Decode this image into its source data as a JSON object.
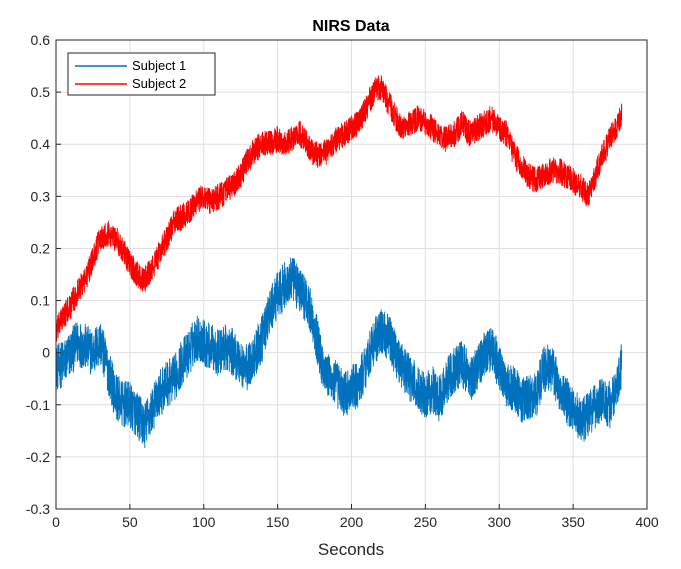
{
  "chart_data": {
    "type": "line",
    "title": "NIRS Data",
    "xlabel": "Seconds",
    "ylabel": "",
    "xlim": [
      0,
      400
    ],
    "ylim": [
      -0.3,
      0.6
    ],
    "xticks": [
      "0",
      "50",
      "100",
      "150",
      "200",
      "250",
      "300",
      "350",
      "400"
    ],
    "yticks": [
      "-0.3",
      "-0.2",
      "-0.1",
      "0",
      "0.1",
      "0.2",
      "0.3",
      "0.4",
      "0.5",
      "0.6"
    ],
    "grid": true,
    "legend_position": "top-left",
    "series": [
      {
        "name": "Subject 1",
        "color": "#0072BD",
        "noise_amplitude": 0.045,
        "x": [
          0,
          5,
          10,
          15,
          20,
          25,
          30,
          35,
          40,
          45,
          50,
          55,
          60,
          65,
          70,
          75,
          80,
          85,
          90,
          95,
          100,
          105,
          110,
          115,
          120,
          125,
          130,
          135,
          140,
          145,
          150,
          155,
          160,
          165,
          170,
          175,
          180,
          185,
          190,
          195,
          200,
          205,
          210,
          215,
          220,
          225,
          230,
          235,
          240,
          245,
          250,
          255,
          260,
          265,
          270,
          275,
          280,
          285,
          290,
          295,
          300,
          305,
          310,
          315,
          320,
          325,
          330,
          335,
          340,
          345,
          350,
          355,
          360,
          365,
          370,
          375,
          380,
          383
        ],
        "y": [
          -0.03,
          -0.02,
          0.0,
          0.02,
          0.01,
          0.0,
          0.02,
          -0.03,
          -0.08,
          -0.1,
          -0.1,
          -0.12,
          -0.14,
          -0.11,
          -0.08,
          -0.06,
          -0.05,
          -0.02,
          0.0,
          0.03,
          0.02,
          0.01,
          0.0,
          0.01,
          0.0,
          -0.02,
          -0.03,
          0.0,
          0.03,
          0.08,
          0.11,
          0.13,
          0.14,
          0.12,
          0.1,
          0.05,
          -0.02,
          -0.05,
          -0.06,
          -0.08,
          -0.07,
          -0.06,
          -0.02,
          0.02,
          0.04,
          0.03,
          0.0,
          -0.03,
          -0.05,
          -0.07,
          -0.08,
          -0.07,
          -0.09,
          -0.05,
          -0.03,
          -0.02,
          -0.05,
          -0.03,
          0.0,
          0.01,
          -0.03,
          -0.06,
          -0.07,
          -0.09,
          -0.09,
          -0.08,
          -0.03,
          -0.03,
          -0.06,
          -0.09,
          -0.11,
          -0.13,
          -0.12,
          -0.1,
          -0.09,
          -0.1,
          -0.07,
          -0.02
        ]
      },
      {
        "name": "Subject 2",
        "color": "#FF0000",
        "noise_amplitude": 0.025,
        "x": [
          0,
          5,
          10,
          15,
          20,
          25,
          30,
          35,
          40,
          45,
          50,
          55,
          60,
          65,
          70,
          75,
          80,
          85,
          90,
          95,
          100,
          105,
          110,
          115,
          120,
          125,
          130,
          135,
          140,
          145,
          150,
          155,
          160,
          165,
          170,
          175,
          180,
          185,
          190,
          195,
          200,
          205,
          210,
          215,
          220,
          225,
          230,
          235,
          240,
          245,
          250,
          255,
          260,
          265,
          270,
          275,
          280,
          285,
          290,
          295,
          300,
          305,
          310,
          315,
          320,
          325,
          330,
          335,
          340,
          345,
          350,
          355,
          360,
          365,
          370,
          375,
          380,
          383
        ],
        "y": [
          0.04,
          0.07,
          0.09,
          0.12,
          0.14,
          0.18,
          0.22,
          0.23,
          0.22,
          0.2,
          0.17,
          0.15,
          0.14,
          0.16,
          0.19,
          0.22,
          0.25,
          0.26,
          0.27,
          0.29,
          0.3,
          0.29,
          0.3,
          0.31,
          0.32,
          0.34,
          0.37,
          0.39,
          0.4,
          0.4,
          0.41,
          0.4,
          0.41,
          0.42,
          0.4,
          0.38,
          0.38,
          0.39,
          0.41,
          0.42,
          0.43,
          0.44,
          0.47,
          0.5,
          0.51,
          0.48,
          0.45,
          0.43,
          0.44,
          0.45,
          0.44,
          0.43,
          0.41,
          0.41,
          0.42,
          0.44,
          0.42,
          0.43,
          0.44,
          0.45,
          0.43,
          0.42,
          0.38,
          0.36,
          0.34,
          0.33,
          0.34,
          0.35,
          0.35,
          0.34,
          0.33,
          0.32,
          0.3,
          0.34,
          0.38,
          0.41,
          0.44,
          0.46
        ]
      }
    ]
  }
}
